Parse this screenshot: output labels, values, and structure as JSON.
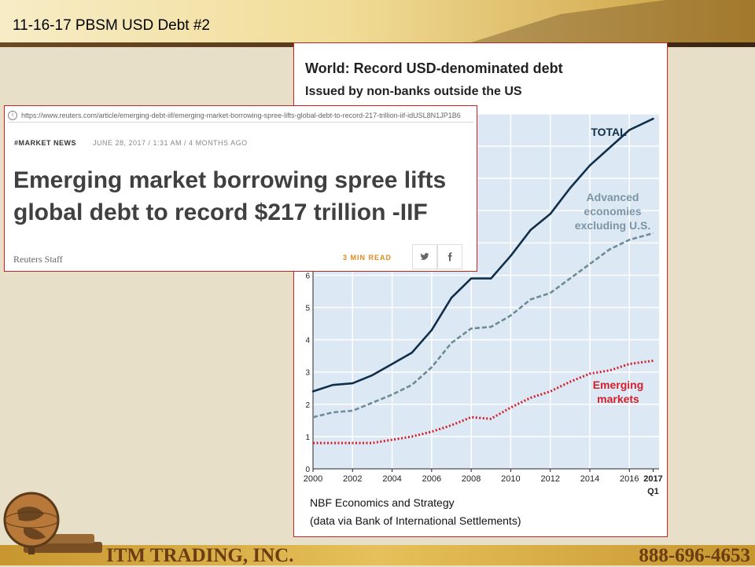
{
  "slide": {
    "title": "11-16-17 PBSM USD Debt #2",
    "footer_company": "ITM TRADING, INC.",
    "footer_phone": "888-696-4653"
  },
  "article": {
    "url": "https://www.reuters.com/article/emerging-debt-iif/emerging-market-borrowing-spree-lifts-global-debt-to-record-217-trillion-iif-idUSL8N1JP1B6",
    "section": "#MARKET NEWS",
    "date": "JUNE 28, 2017 / 1:31 AM / 4 MONTHS AGO",
    "headline": "Emerging market borrowing spree lifts global debt to record $217 trillion -IIF",
    "byline": "Reuters Staff",
    "read_time": "3 MIN READ",
    "share_icons": [
      "twitter-icon",
      "facebook-icon"
    ]
  },
  "colors": {
    "total": "#0f2f4a",
    "advanced": "#6e8a99",
    "emerging": "#d41f2a",
    "plot_bg": "#dce8f4",
    "accent_border": "#c9221f"
  },
  "chart_data": {
    "type": "line",
    "title": "World: Record USD-denominated debt",
    "subtitle": "Issued by non-banks outside the US",
    "x": [
      2000,
      2001,
      2002,
      2003,
      2004,
      2005,
      2006,
      2007,
      2008,
      2009,
      2010,
      2011,
      2012,
      2013,
      2014,
      2015,
      2016,
      2017
    ],
    "x_ticks": [
      "2000",
      "2002",
      "2004",
      "2006",
      "2008",
      "2010",
      "2012",
      "2014",
      "2016",
      "2017"
    ],
    "x_last_label_sub": "Q1",
    "y_ticks_visible": [
      "0",
      "1",
      "2",
      "3",
      "4",
      "5",
      "6"
    ],
    "ylim": [
      0,
      11
    ],
    "series": [
      {
        "name": "TOTAL",
        "style": "solid",
        "values": [
          2.4,
          2.6,
          2.65,
          2.9,
          3.25,
          3.6,
          4.3,
          5.3,
          5.9,
          5.9,
          6.6,
          7.4,
          7.9,
          8.7,
          9.4,
          9.95,
          10.5,
          10.85
        ]
      },
      {
        "name": "Advanced economies excluding U.S.",
        "style": "dashed",
        "values": [
          1.6,
          1.75,
          1.8,
          2.05,
          2.3,
          2.6,
          3.15,
          3.9,
          4.35,
          4.4,
          4.75,
          5.25,
          5.45,
          5.9,
          6.35,
          6.8,
          7.1,
          7.3
        ]
      },
      {
        "name": "Emerging markets",
        "style": "dotted",
        "values": [
          0.8,
          0.8,
          0.8,
          0.8,
          0.9,
          1.0,
          1.15,
          1.35,
          1.6,
          1.55,
          1.9,
          2.2,
          2.4,
          2.7,
          2.95,
          3.05,
          3.25,
          3.35
        ]
      }
    ],
    "series_label_lines": {
      "total": [
        "TOTAL"
      ],
      "advanced": [
        "Advanced",
        "economies",
        "excluding U.S."
      ],
      "emerging": [
        "Emerging",
        "markets"
      ]
    },
    "source_lines": [
      "NBF Economics and Strategy",
      "(data via Bank of International Settlements)"
    ],
    "grid": true
  }
}
